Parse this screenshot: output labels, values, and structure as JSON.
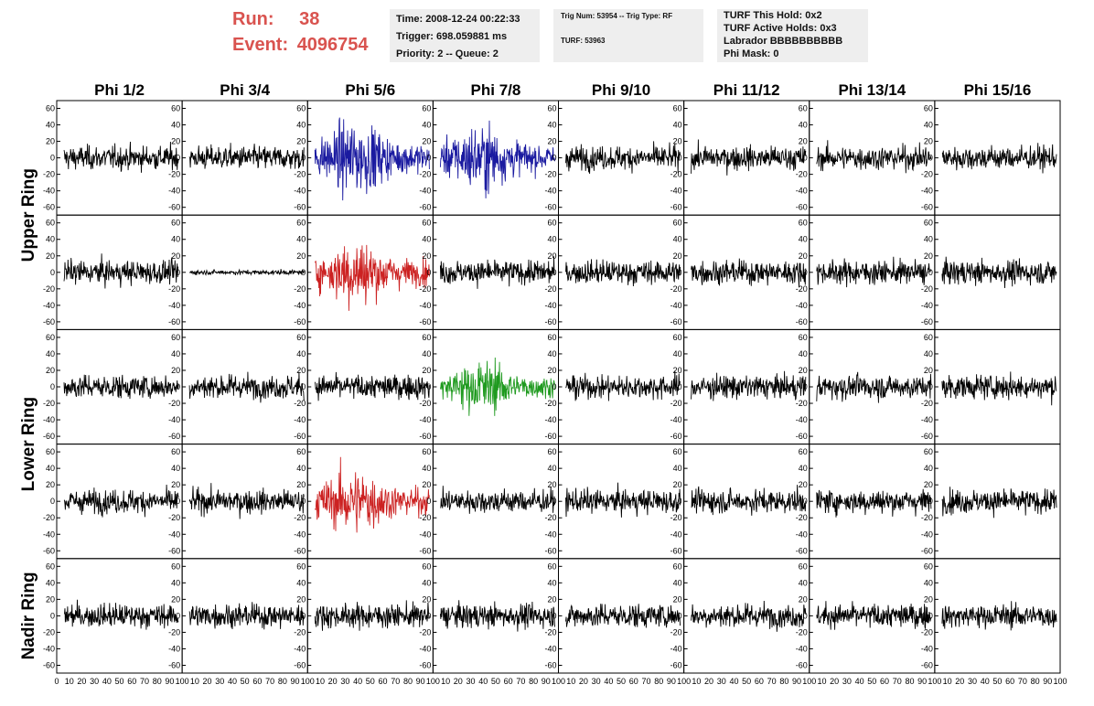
{
  "header": {
    "run_label": "Run:",
    "run_value": "38",
    "event_label": "Event:",
    "event_value": "4096754",
    "time_box": [
      "Time: 2008-12-24 00:22:33",
      "Trigger: 698.059881 ms",
      "Priority: 2 -- Queue: 2"
    ],
    "trig_box": [
      "Trig Num: 53954 -- Trig Type: RF",
      "TURF: 53963"
    ],
    "turf_box": [
      "TURF This Hold: 0x2",
      "TURF Active Holds: 0x3",
      "Labrador BBBBBBBBBB",
      "Phi Mask: 0"
    ],
    "accent_color": "#d9534f"
  },
  "chart_data": {
    "type": "line",
    "columns": [
      "Phi 1/2",
      "Phi 3/4",
      "Phi 5/6",
      "Phi 7/8",
      "Phi 9/10",
      "Phi 11/12",
      "Phi 13/14",
      "Phi 15/16"
    ],
    "rows": [
      "Upper Ring",
      "Upper Ring",
      "Lower Ring",
      "Lower Ring",
      "Nadir Ring"
    ],
    "row_labels": [
      "Upper Ring",
      "Lower Ring",
      "Nadir Ring"
    ],
    "xlim": [
      0,
      100
    ],
    "ylim": [
      -65,
      65
    ],
    "yticks": [
      -60,
      -40,
      -20,
      0,
      20,
      40,
      60
    ],
    "x_tick_labels": [
      "0",
      "10",
      "20",
      "30",
      "40",
      "50",
      "60",
      "70",
      "80",
      "90",
      "100"
    ],
    "colors": {
      "default": "#000000",
      "blue": "#1a1aa0",
      "red": "#cc2222",
      "green": "#1f9a1f"
    },
    "highlighted": [
      {
        "row": 0,
        "col": 2,
        "color": "blue",
        "amplitude": 22
      },
      {
        "row": 0,
        "col": 3,
        "color": "blue",
        "amplitude": 20
      },
      {
        "row": 1,
        "col": 2,
        "color": "red",
        "amplitude": 20
      },
      {
        "row": 2,
        "col": 3,
        "color": "green",
        "amplitude": 16
      },
      {
        "row": 3,
        "col": 2,
        "color": "red",
        "amplitude": 20
      }
    ],
    "quiet_panels": [
      {
        "row": 1,
        "col": 1,
        "amplitude": 2
      }
    ],
    "default_amplitude": 10
  }
}
